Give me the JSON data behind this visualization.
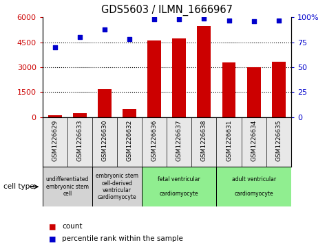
{
  "title": "GDS5603 / ILMN_1666967",
  "samples": [
    "GSM1226629",
    "GSM1226633",
    "GSM1226630",
    "GSM1226632",
    "GSM1226636",
    "GSM1226637",
    "GSM1226638",
    "GSM1226631",
    "GSM1226634",
    "GSM1226635"
  ],
  "counts": [
    120,
    220,
    1680,
    490,
    4600,
    4750,
    5500,
    3300,
    3000,
    3350
  ],
  "percentiles": [
    70,
    80,
    88,
    78,
    98,
    98,
    99,
    97,
    96,
    97
  ],
  "ylim_left": [
    0,
    6000
  ],
  "ylim_right": [
    0,
    100
  ],
  "yticks_left": [
    0,
    1500,
    3000,
    4500,
    6000
  ],
  "ytick_labels_left": [
    "0",
    "1500",
    "3000",
    "4500",
    "6000"
  ],
  "yticks_right": [
    0,
    25,
    50,
    75,
    100
  ],
  "ytick_labels_right": [
    "0",
    "25",
    "50",
    "75",
    "100%"
  ],
  "bar_color": "#cc0000",
  "dot_color": "#0000cc",
  "background_color": "#ffffff",
  "cell_type_groups": [
    {
      "label": "undifferentiated\nembryonic stem\ncell",
      "start": 0,
      "end": 2,
      "color": "#d3d3d3"
    },
    {
      "label": "embryonic stem\ncell-derived\nventricular\ncardiomyocyte",
      "start": 2,
      "end": 4,
      "color": "#d3d3d3"
    },
    {
      "label": "fetal ventricular\n\ncardiomyocyte",
      "start": 4,
      "end": 7,
      "color": "#90ee90"
    },
    {
      "label": "adult ventricular\n\ncardiomyocyte",
      "start": 7,
      "end": 10,
      "color": "#90ee90"
    }
  ],
  "legend_count_label": "count",
  "legend_percentile_label": "percentile rank within the sample",
  "cell_type_label": "cell type"
}
